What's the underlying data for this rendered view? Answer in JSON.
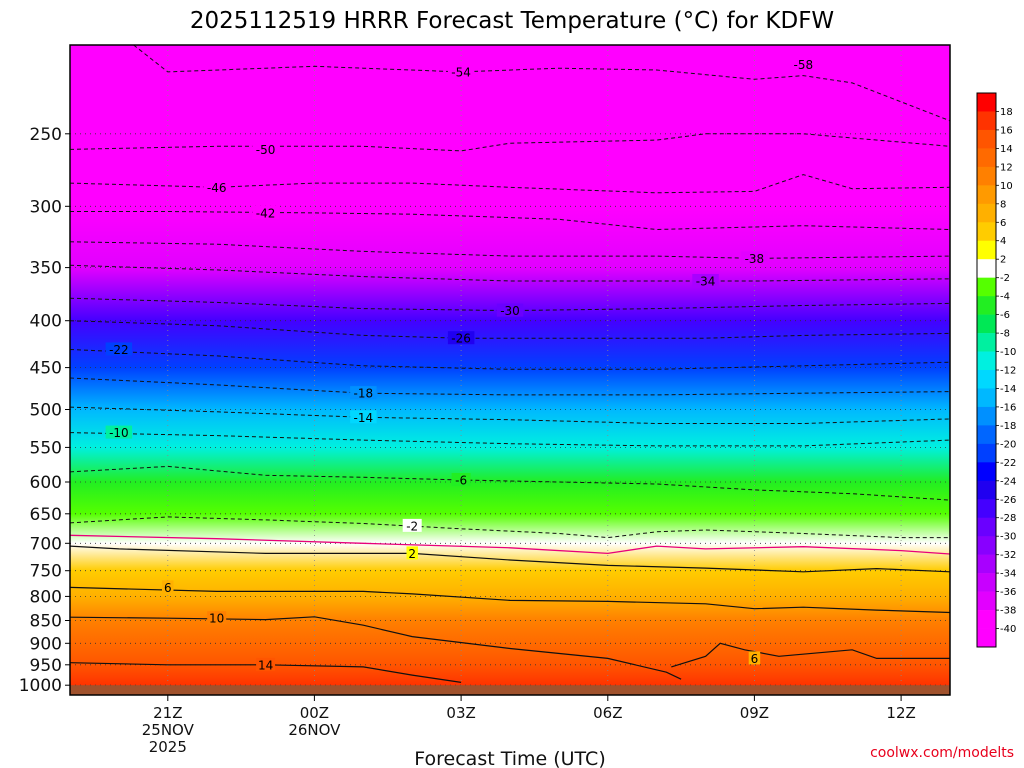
{
  "chart_data": {
    "type": "heatmap",
    "title": "2025112519 HRRR Forecast Temperature (°C) for KDFW",
    "xlabel": "Forecast Time (UTC)",
    "ylabel": "",
    "x_ticks": [
      {
        "label": "21Z",
        "sub1": "25NOV",
        "sub2": "2025",
        "hour": 2
      },
      {
        "label": "00Z",
        "sub1": "26NOV",
        "sub2": "",
        "hour": 5
      },
      {
        "label": "03Z",
        "sub1": "",
        "sub2": "",
        "hour": 8
      },
      {
        "label": "06Z",
        "sub1": "",
        "sub2": "",
        "hour": 11
      },
      {
        "label": "09Z",
        "sub1": "",
        "sub2": "",
        "hour": 14
      },
      {
        "label": "12Z",
        "sub1": "",
        "sub2": "",
        "hour": 17
      }
    ],
    "xlim_hours": [
      0,
      18
    ],
    "y_ticks": [
      "250",
      "300",
      "350",
      "400",
      "450",
      "500",
      "550",
      "600",
      "650",
      "700",
      "750",
      "800",
      "850",
      "900",
      "950",
      "1000"
    ],
    "ylim_hpa": [
      1025,
      200
    ],
    "y_scale": "log-pressure",
    "ground_hpa": 1000,
    "ground_color": "#a0522d",
    "colorbar": {
      "labels": [
        "18",
        "16",
        "14",
        "12",
        "10",
        "8",
        "6",
        "4",
        "2",
        "-2",
        "-4",
        "-6",
        "-8",
        "-10",
        "-12",
        "-14",
        "-16",
        "-18",
        "-20",
        "-22",
        "-24",
        "-26",
        "-28",
        "-30",
        "-32",
        "-34",
        "-36",
        "-38",
        "-40"
      ],
      "colors": [
        "#ff0000",
        "#ff3300",
        "#ff5500",
        "#ff6a00",
        "#ff8000",
        "#ff9a00",
        "#ffb000",
        "#ffcc00",
        "#ffff00",
        "#ffffff",
        "#55ff00",
        "#22ee22",
        "#00e855",
        "#00f0a0",
        "#00f0e0",
        "#00d8ff",
        "#00b8ff",
        "#0090ff",
        "#0066ff",
        "#0040ff",
        "#0000ff",
        "#2000f0",
        "#4400ff",
        "#6a00ff",
        "#8800ff",
        "#a800ff",
        "#c800ff",
        "#e200ff",
        "#ff00ff",
        "#ff00ff"
      ]
    },
    "temperature_profile": [
      {
        "p": 200,
        "t": -58
      },
      {
        "p": 250,
        "t": -52
      },
      {
        "p": 300,
        "t": -44
      },
      {
        "p": 350,
        "t": -37
      },
      {
        "p": 400,
        "t": -28
      },
      {
        "p": 450,
        "t": -22
      },
      {
        "p": 500,
        "t": -16
      },
      {
        "p": 550,
        "t": -11
      },
      {
        "p": 600,
        "t": -6
      },
      {
        "p": 650,
        "t": -3
      },
      {
        "p": 700,
        "t": 0
      },
      {
        "p": 750,
        "t": 3
      },
      {
        "p": 800,
        "t": 6
      },
      {
        "p": 850,
        "t": 9
      },
      {
        "p": 900,
        "t": 12
      },
      {
        "p": 950,
        "t": 14
      },
      {
        "p": 1000,
        "t": 15
      }
    ],
    "contours": [
      {
        "value": -58,
        "label": "-58",
        "style": "dashed",
        "points": [
          [
            0,
            200
          ],
          [
            18,
            200
          ]
        ],
        "label_at": [
          15,
          210
        ]
      },
      {
        "value": -54,
        "label": "-54",
        "style": "dashed",
        "points": [
          [
            1.3,
            200
          ],
          [
            2,
            214
          ],
          [
            4,
            212
          ],
          [
            5,
            211
          ],
          [
            6,
            212
          ],
          [
            8,
            214
          ],
          [
            10,
            212
          ],
          [
            12,
            213
          ],
          [
            14,
            218
          ],
          [
            15,
            216
          ],
          [
            16,
            220
          ],
          [
            18,
            242
          ]
        ],
        "label_at": [
          8,
          214
        ]
      },
      {
        "value": -50,
        "label": "-50",
        "style": "dashed",
        "points": [
          [
            0,
            260
          ],
          [
            3,
            258
          ],
          [
            6,
            258
          ],
          [
            8,
            261
          ],
          [
            9,
            256
          ],
          [
            12,
            254
          ],
          [
            13,
            250
          ],
          [
            15,
            250
          ],
          [
            18,
            258
          ]
        ],
        "label_at": [
          4,
          260
        ]
      },
      {
        "value": -46,
        "label": "-46",
        "style": "dashed",
        "points": [
          [
            0,
            283
          ],
          [
            3,
            286
          ],
          [
            5,
            283
          ],
          [
            7,
            283
          ],
          [
            9,
            286
          ],
          [
            12,
            290
          ],
          [
            14,
            289
          ],
          [
            15,
            277
          ],
          [
            16,
            287
          ],
          [
            18,
            286
          ]
        ],
        "label_at": [
          3,
          286
        ]
      },
      {
        "value": -42,
        "label": "-42",
        "style": "dashed",
        "points": [
          [
            0,
            304
          ],
          [
            2,
            304
          ],
          [
            5,
            305
          ],
          [
            7,
            306
          ],
          [
            10,
            310
          ],
          [
            12,
            318
          ],
          [
            15,
            315
          ],
          [
            18,
            318
          ]
        ],
        "label_at": [
          4,
          305
        ]
      },
      {
        "value": -38,
        "label": "-38",
        "style": "dashed",
        "points": [
          [
            0,
            328
          ],
          [
            3,
            330
          ],
          [
            6,
            336
          ],
          [
            9,
            340
          ],
          [
            12,
            340
          ],
          [
            14,
            342
          ],
          [
            18,
            340
          ]
        ],
        "label_at": [
          14,
          342
        ]
      },
      {
        "value": -34,
        "label": "-34",
        "style": "dashed",
        "points": [
          [
            0,
            348
          ],
          [
            3,
            352
          ],
          [
            6,
            358
          ],
          [
            9,
            362
          ],
          [
            12,
            362
          ],
          [
            14,
            362
          ],
          [
            18,
            360
          ]
        ],
        "label_at": [
          13,
          362
        ]
      },
      {
        "value": -30,
        "label": "-30",
        "style": "dashed",
        "points": [
          [
            0,
            378
          ],
          [
            3,
            382
          ],
          [
            6,
            388
          ],
          [
            9,
            390
          ],
          [
            12,
            388
          ],
          [
            15,
            385
          ],
          [
            18,
            383
          ]
        ],
        "label_at": [
          9,
          390
        ]
      },
      {
        "value": -26,
        "label": "-26",
        "style": "dashed",
        "points": [
          [
            0,
            400
          ],
          [
            3,
            405
          ],
          [
            6,
            415
          ],
          [
            8,
            418
          ],
          [
            10,
            418
          ],
          [
            13,
            418
          ],
          [
            15,
            415
          ],
          [
            18,
            413
          ]
        ],
        "label_at": [
          8,
          418
        ]
      },
      {
        "value": -22,
        "label": "-22",
        "style": "dashed",
        "points": [
          [
            0,
            430
          ],
          [
            3,
            437
          ],
          [
            6,
            448
          ],
          [
            9,
            452
          ],
          [
            12,
            452
          ],
          [
            15,
            448
          ],
          [
            18,
            444
          ]
        ],
        "label_at": [
          1,
          430
        ]
      },
      {
        "value": -18,
        "label": "-18",
        "style": "dashed",
        "points": [
          [
            0,
            462
          ],
          [
            3,
            470
          ],
          [
            6,
            480
          ],
          [
            9,
            482
          ],
          [
            12,
            482
          ],
          [
            15,
            480
          ],
          [
            18,
            478
          ]
        ],
        "label_at": [
          6,
          480
        ]
      },
      {
        "value": -14,
        "label": "-14",
        "style": "dashed",
        "points": [
          [
            0,
            497
          ],
          [
            3,
            503
          ],
          [
            6,
            510
          ],
          [
            9,
            513
          ],
          [
            12,
            518
          ],
          [
            15,
            518
          ],
          [
            18,
            512
          ]
        ],
        "label_at": [
          6,
          510
        ]
      },
      {
        "value": -10,
        "label": "-10",
        "style": "dashed",
        "points": [
          [
            0,
            530
          ],
          [
            3,
            534
          ],
          [
            6,
            540
          ],
          [
            9,
            545
          ],
          [
            12,
            548
          ],
          [
            15,
            548
          ],
          [
            18,
            540
          ]
        ],
        "label_at": [
          1,
          530
        ]
      },
      {
        "value": -6,
        "label": "-6",
        "style": "dashed",
        "points": [
          [
            0,
            585
          ],
          [
            2,
            577
          ],
          [
            4,
            590
          ],
          [
            6,
            593
          ],
          [
            8,
            597
          ],
          [
            10,
            600
          ],
          [
            12,
            603
          ],
          [
            14,
            612
          ],
          [
            16,
            618
          ],
          [
            18,
            628
          ]
        ],
        "label_at": [
          8,
          597
        ]
      },
      {
        "value": -2,
        "label": "-2",
        "style": "dashed",
        "points": [
          [
            0,
            665
          ],
          [
            2,
            655
          ],
          [
            4,
            660
          ],
          [
            6,
            666
          ],
          [
            8,
            675
          ],
          [
            10,
            683
          ],
          [
            11,
            690
          ],
          [
            12,
            680
          ],
          [
            13,
            677
          ],
          [
            15,
            683
          ],
          [
            17,
            690
          ],
          [
            18,
            690
          ]
        ],
        "label_at": [
          7,
          670
        ]
      },
      {
        "value": 0,
        "label": "",
        "style": "freezing",
        "points": [
          [
            0,
            686
          ],
          [
            3,
            692
          ],
          [
            6,
            700
          ],
          [
            9,
            708
          ],
          [
            11,
            718
          ],
          [
            12,
            705
          ],
          [
            13,
            710
          ],
          [
            15,
            706
          ],
          [
            17,
            713
          ],
          [
            18,
            719
          ]
        ],
        "label_at": null
      },
      {
        "value": 2,
        "label": "2",
        "style": "solid",
        "points": [
          [
            0,
            705
          ],
          [
            1,
            710
          ],
          [
            4,
            718
          ],
          [
            7,
            718
          ],
          [
            9,
            730
          ],
          [
            11,
            740
          ],
          [
            13,
            745
          ],
          [
            15,
            752
          ],
          [
            16.5,
            746
          ],
          [
            18,
            752
          ]
        ],
        "label_at": [
          7,
          718
        ]
      },
      {
        "value": 6,
        "label": "6",
        "style": "solid",
        "points": [
          [
            0,
            782
          ],
          [
            3,
            790
          ],
          [
            6,
            790
          ],
          [
            7,
            795
          ],
          [
            9,
            808
          ],
          [
            11,
            810
          ],
          [
            13,
            815
          ],
          [
            14,
            825
          ],
          [
            15,
            822
          ],
          [
            16.5,
            828
          ],
          [
            18,
            833
          ]
        ],
        "label_at": [
          2,
          782
        ]
      },
      {
        "value": 10,
        "label": "10",
        "style": "solid",
        "points": [
          [
            0,
            843
          ],
          [
            2,
            845
          ],
          [
            4,
            848
          ],
          [
            5,
            842
          ],
          [
            6,
            860
          ],
          [
            7,
            885
          ],
          [
            9,
            912
          ],
          [
            11,
            935
          ],
          [
            12.2,
            968
          ],
          [
            12.5,
            985
          ]
        ],
        "label_at": [
          3,
          845
        ]
      },
      {
        "value": 14,
        "label": "14",
        "style": "solid",
        "points": [
          [
            0,
            945
          ],
          [
            2,
            950
          ],
          [
            4,
            950
          ],
          [
            6,
            955
          ],
          [
            7,
            975
          ],
          [
            8,
            993
          ]
        ],
        "label_at": [
          4,
          950
        ]
      },
      {
        "value": 6,
        "label": "6",
        "style": "solid",
        "points": [
          [
            12.3,
            955
          ],
          [
            13,
            930
          ],
          [
            13.3,
            900
          ],
          [
            13.8,
            915
          ],
          [
            14.5,
            930
          ],
          [
            16,
            915
          ],
          [
            16.5,
            935
          ],
          [
            18,
            935
          ]
        ],
        "label_at": [
          14,
          935
        ]
      }
    ]
  },
  "credit": "coolwx.com/modelts"
}
